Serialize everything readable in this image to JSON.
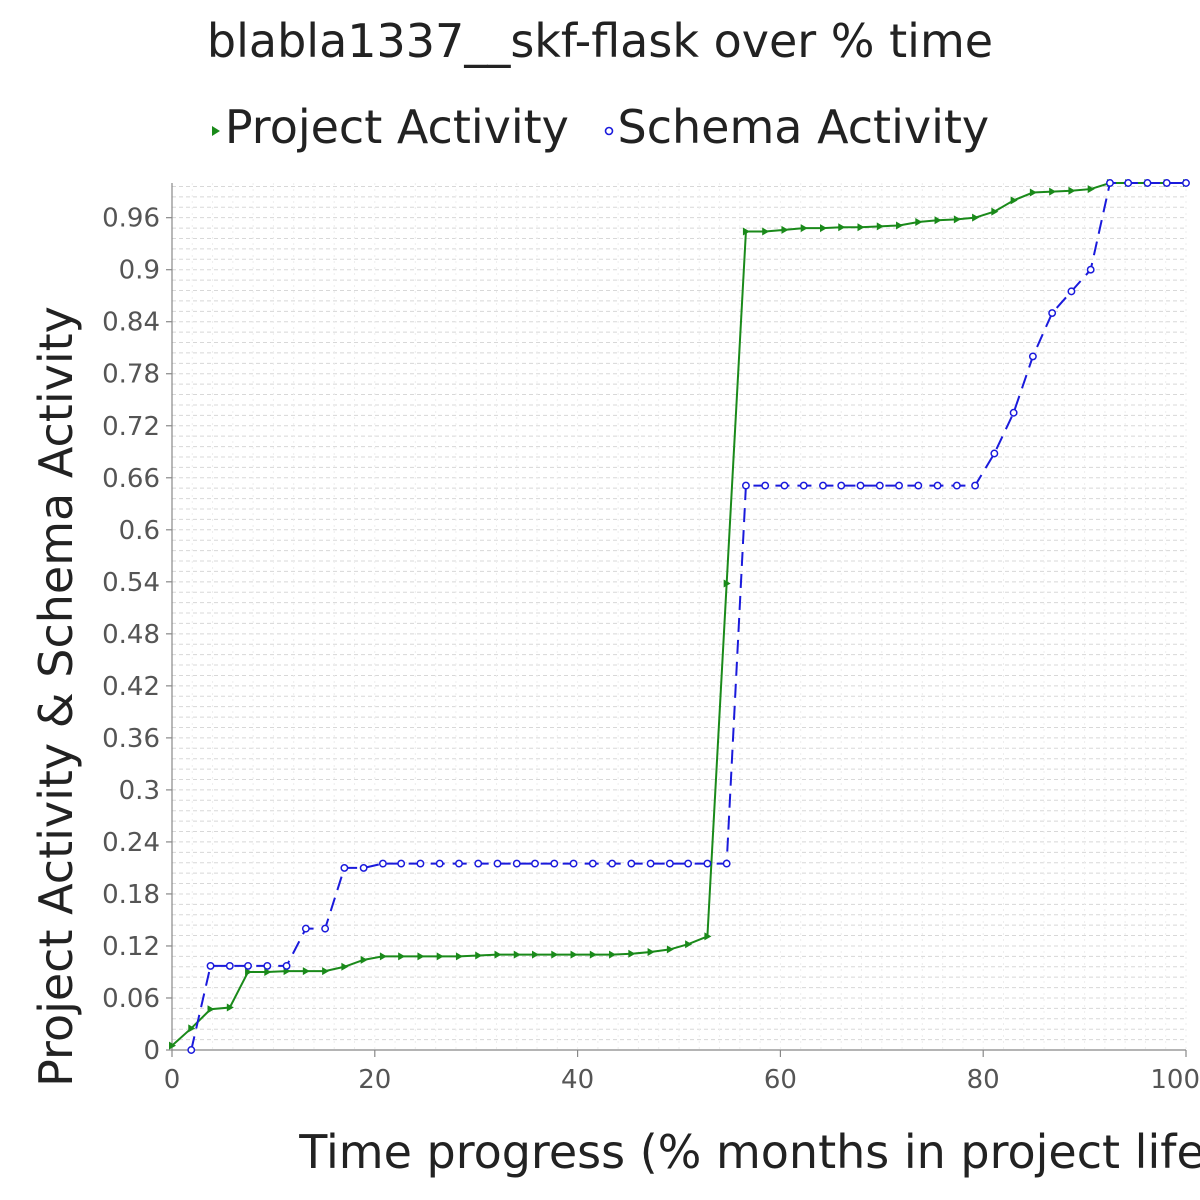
{
  "chart_data": {
    "type": "line",
    "title": "blabla1337__skf-flask over % time",
    "xlabel": "Time progress (% months in project life)",
    "ylabel": "Project Activity & Schema Activity",
    "xlim": [
      0,
      100
    ],
    "ylim": [
      0,
      1.0
    ],
    "x_ticks": [
      "0",
      "20",
      "40",
      "60",
      "80",
      "100"
    ],
    "y_ticks": [
      "0",
      "0.06",
      "0.12",
      "0.18",
      "0.24",
      "0.3",
      "0.36",
      "0.42",
      "0.48",
      "0.54",
      "0.6",
      "0.66",
      "0.72",
      "0.78",
      "0.84",
      "0.9",
      "0.96"
    ],
    "grid": true,
    "legend_position": "top",
    "series": [
      {
        "name": "Project Activity",
        "color": "#1a8a1a",
        "line": "solid",
        "marker": "triangle-right",
        "points": [
          [
            0,
            0.005
          ],
          [
            1.9,
            0.025
          ],
          [
            3.8,
            0.047
          ],
          [
            5.7,
            0.049
          ],
          [
            7.5,
            0.09
          ],
          [
            9.4,
            0.09
          ],
          [
            11.3,
            0.091
          ],
          [
            13.2,
            0.091
          ],
          [
            15.1,
            0.091
          ],
          [
            17,
            0.096
          ],
          [
            18.9,
            0.104
          ],
          [
            20.8,
            0.108
          ],
          [
            22.6,
            0.108
          ],
          [
            24.5,
            0.108
          ],
          [
            26.4,
            0.108
          ],
          [
            28.3,
            0.108
          ],
          [
            30.2,
            0.109
          ],
          [
            32.1,
            0.11
          ],
          [
            34,
            0.11
          ],
          [
            35.8,
            0.11
          ],
          [
            37.7,
            0.11
          ],
          [
            39.6,
            0.11
          ],
          [
            41.5,
            0.11
          ],
          [
            43.4,
            0.11
          ],
          [
            45.3,
            0.111
          ],
          [
            47.2,
            0.113
          ],
          [
            49.1,
            0.116
          ],
          [
            50.9,
            0.122
          ],
          [
            52.8,
            0.131
          ],
          [
            54.7,
            0.538
          ],
          [
            56.6,
            0.944
          ],
          [
            58.5,
            0.944
          ],
          [
            60.4,
            0.946
          ],
          [
            62.3,
            0.948
          ],
          [
            64.2,
            0.948
          ],
          [
            66,
            0.949
          ],
          [
            67.9,
            0.949
          ],
          [
            69.8,
            0.95
          ],
          [
            71.7,
            0.951
          ],
          [
            73.6,
            0.955
          ],
          [
            75.5,
            0.957
          ],
          [
            77.4,
            0.958
          ],
          [
            79.2,
            0.96
          ],
          [
            81.1,
            0.967
          ],
          [
            83,
            0.98
          ],
          [
            84.9,
            0.989
          ],
          [
            86.8,
            0.99
          ],
          [
            88.7,
            0.991
          ],
          [
            90.6,
            0.993
          ],
          [
            92.5,
            1.0
          ],
          [
            94.3,
            1.0
          ],
          [
            96.2,
            1.0
          ],
          [
            98.1,
            1.0
          ],
          [
            100,
            1.0
          ]
        ]
      },
      {
        "name": "Schema Activity",
        "color": "#1a1adc",
        "line": "dashed",
        "marker": "circle",
        "points": [
          [
            1.9,
            0.0
          ],
          [
            3.8,
            0.097
          ],
          [
            5.7,
            0.097
          ],
          [
            7.5,
            0.097
          ],
          [
            9.4,
            0.097
          ],
          [
            11.3,
            0.097
          ],
          [
            13.2,
            0.14
          ],
          [
            15.1,
            0.14
          ],
          [
            17,
            0.21
          ],
          [
            18.9,
            0.21
          ],
          [
            20.8,
            0.215
          ],
          [
            22.6,
            0.215
          ],
          [
            24.5,
            0.215
          ],
          [
            26.4,
            0.215
          ],
          [
            28.3,
            0.215
          ],
          [
            30.2,
            0.215
          ],
          [
            32.1,
            0.215
          ],
          [
            34,
            0.215
          ],
          [
            35.8,
            0.215
          ],
          [
            37.7,
            0.215
          ],
          [
            39.6,
            0.215
          ],
          [
            41.5,
            0.215
          ],
          [
            43.4,
            0.215
          ],
          [
            45.3,
            0.215
          ],
          [
            47.2,
            0.215
          ],
          [
            49.1,
            0.215
          ],
          [
            50.9,
            0.215
          ],
          [
            52.8,
            0.215
          ],
          [
            54.7,
            0.215
          ],
          [
            56.6,
            0.651
          ],
          [
            58.5,
            0.651
          ],
          [
            60.4,
            0.651
          ],
          [
            62.3,
            0.651
          ],
          [
            64.2,
            0.651
          ],
          [
            66,
            0.651
          ],
          [
            67.9,
            0.651
          ],
          [
            69.8,
            0.651
          ],
          [
            71.7,
            0.651
          ],
          [
            73.6,
            0.651
          ],
          [
            75.5,
            0.651
          ],
          [
            77.4,
            0.651
          ],
          [
            79.2,
            0.651
          ],
          [
            81.1,
            0.688
          ],
          [
            83,
            0.735
          ],
          [
            84.9,
            0.8
          ],
          [
            86.8,
            0.85
          ],
          [
            88.7,
            0.875
          ],
          [
            90.6,
            0.9
          ],
          [
            92.5,
            1.0
          ],
          [
            94.3,
            1.0
          ],
          [
            96.2,
            1.0
          ],
          [
            98.1,
            1.0
          ],
          [
            100,
            1.0
          ]
        ]
      }
    ]
  }
}
